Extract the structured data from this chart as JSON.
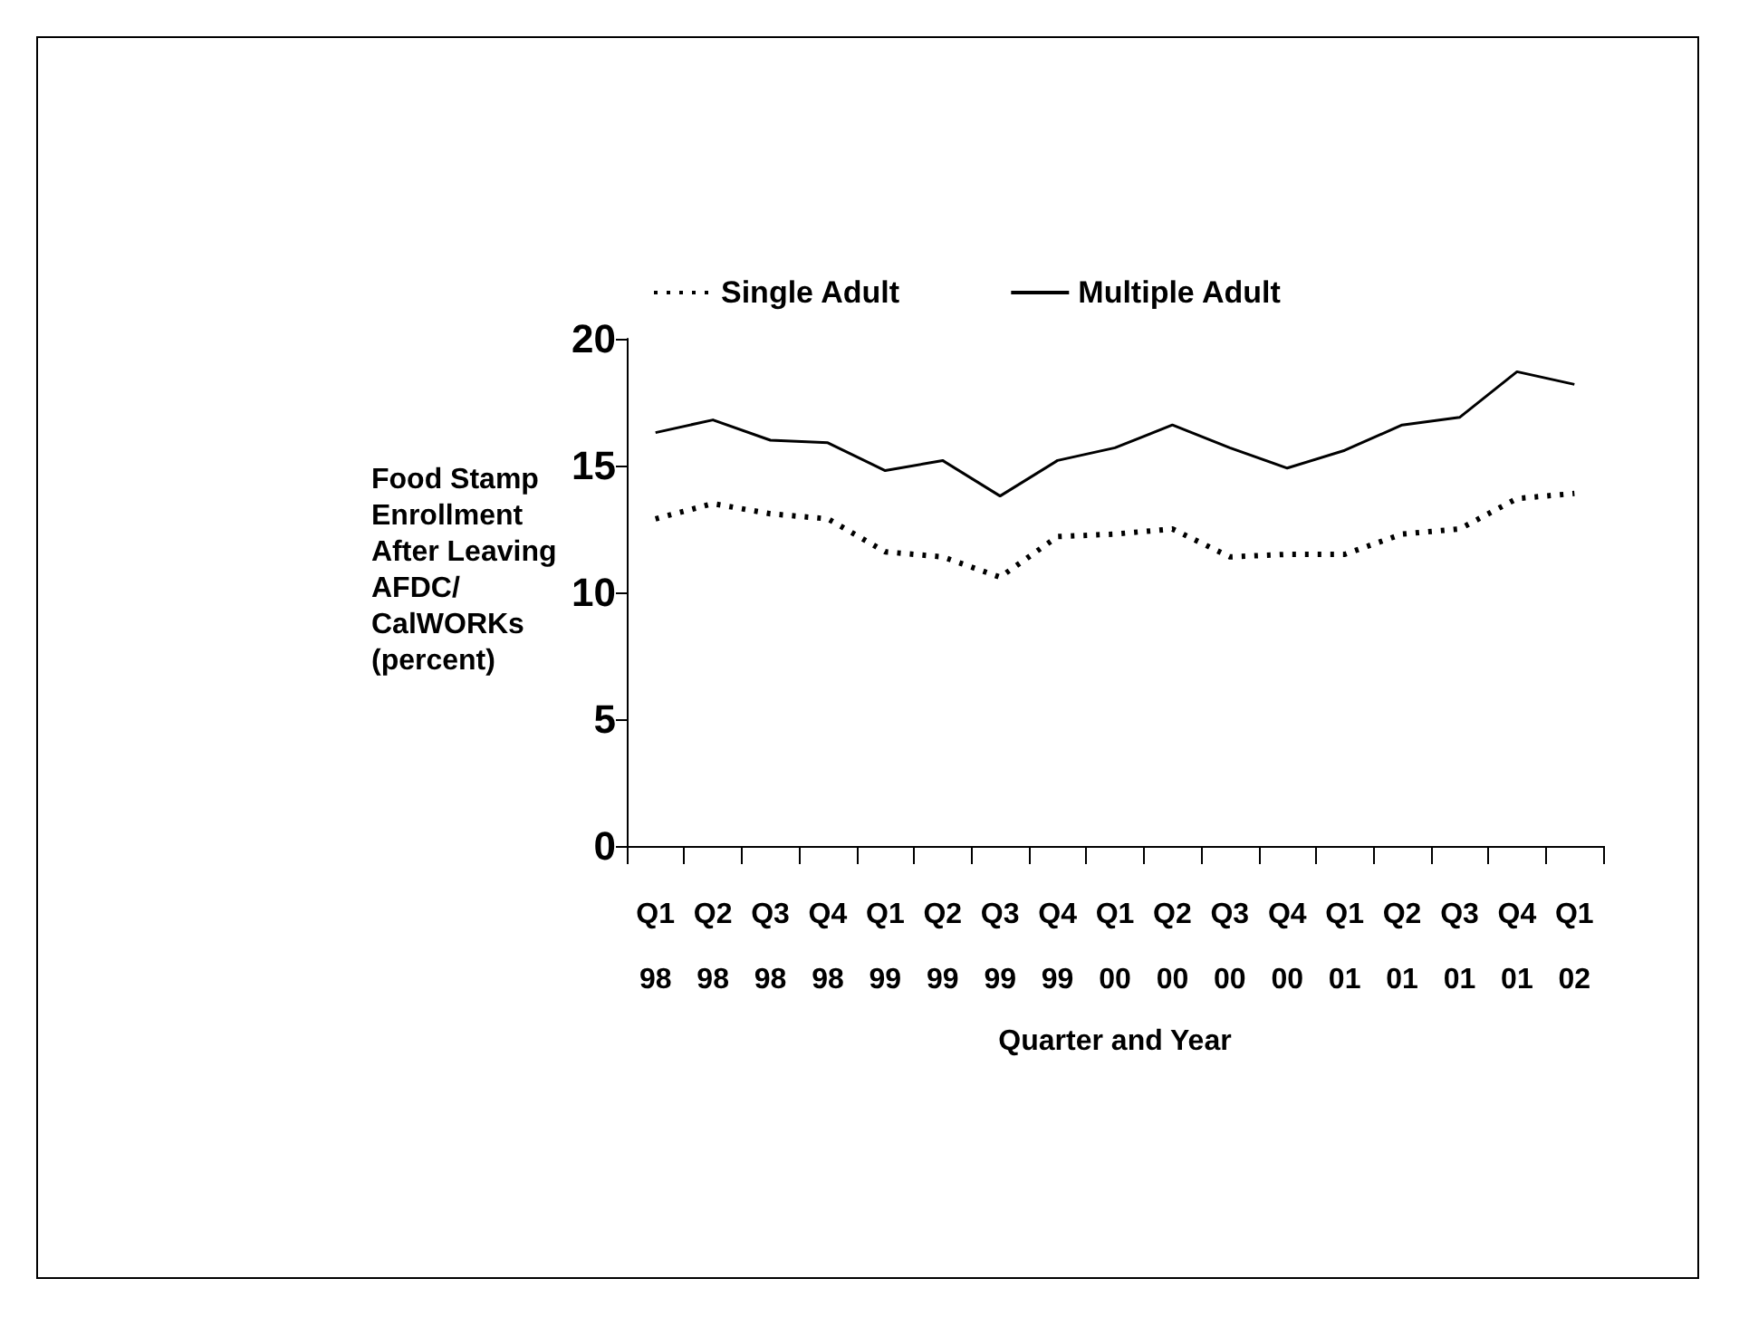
{
  "chart_data": {
    "type": "line",
    "xlabel": "Quarter and Year",
    "ylabel": "Food Stamp Enrollment After Leaving AFDC/ CalWORKs (percent)",
    "categories": [
      "Q1\n98",
      "Q2\n98",
      "Q3\n98",
      "Q4\n98",
      "Q1\n99",
      "Q2\n99",
      "Q3\n99",
      "Q4\n99",
      "Q1\n00",
      "Q2\n00",
      "Q3\n00",
      "Q4\n00",
      "Q1\n01",
      "Q2\n01",
      "Q3\n01",
      "Q4\n01",
      "Q1\n02"
    ],
    "series": [
      {
        "name": "Single Adult",
        "color": "#000000",
        "line_style": "dotted",
        "values": [
          12.9,
          13.5,
          13.1,
          12.9,
          11.6,
          11.4,
          10.6,
          12.2,
          12.3,
          12.5,
          11.4,
          11.5,
          11.5,
          12.3,
          12.5,
          13.7,
          13.9
        ]
      },
      {
        "name": "Multiple Adult",
        "color": "#000000",
        "line_style": "solid",
        "values": [
          16.3,
          16.8,
          16.0,
          15.9,
          14.8,
          15.2,
          13.8,
          15.2,
          15.7,
          16.6,
          15.7,
          14.9,
          15.6,
          16.6,
          16.9,
          18.7,
          18.2
        ]
      }
    ],
    "ylim": [
      0,
      20
    ],
    "yticks": [
      0,
      5,
      10,
      15,
      20
    ],
    "grid": false,
    "legend": "top",
    "marker": "none"
  }
}
